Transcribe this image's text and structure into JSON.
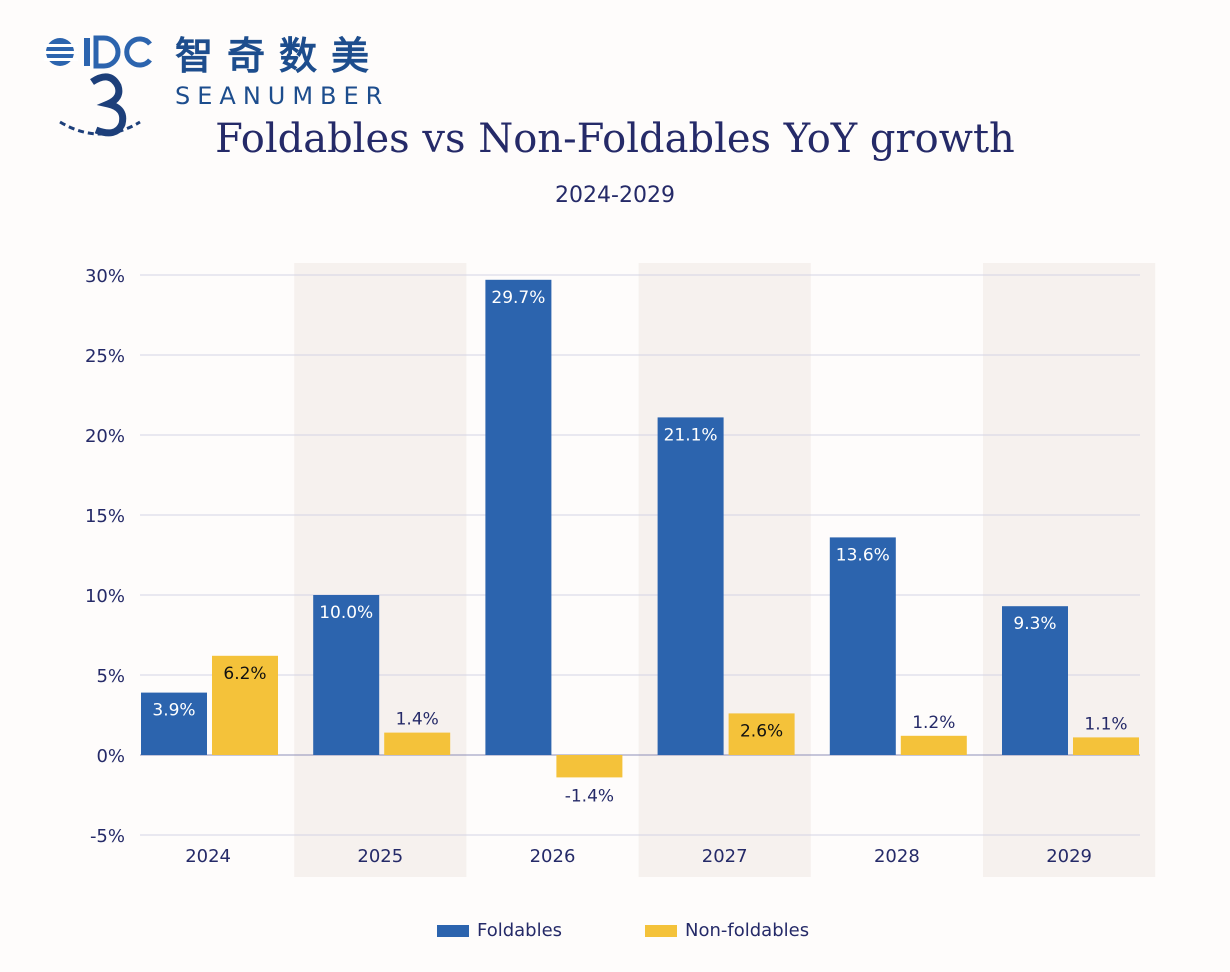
{
  "logo": {
    "brand_cn": "智奇数美",
    "brand_en": "SEANUMBER",
    "badge_text": "IDC SEA NUMBER"
  },
  "chart_data": {
    "type": "bar",
    "title": "Foldables vs Non-Foldables YoY growth",
    "subtitle": "2024-2029",
    "categories": [
      "2024",
      "2025",
      "2026",
      "2027",
      "2028",
      "2029"
    ],
    "series": [
      {
        "name": "Foldables",
        "color": "#2c64ae",
        "values": [
          3.9,
          10.0,
          29.7,
          21.1,
          13.6,
          9.3
        ],
        "labels": [
          "3.9%",
          "10.0%",
          "29.7%",
          "21.1%",
          "13.6%",
          "9.3%"
        ]
      },
      {
        "name": "Non-foldables",
        "color": "#f4c23a",
        "values": [
          6.2,
          1.4,
          -1.4,
          2.6,
          1.2,
          1.1
        ],
        "labels": [
          "6.2%",
          "1.4%",
          "-1.4%",
          "2.6%",
          "1.2%",
          "1.1%"
        ]
      }
    ],
    "yticks": [
      "-5%",
      "0%",
      "5%",
      "10%",
      "15%",
      "20%",
      "25%",
      "30%"
    ],
    "ytick_values": [
      -5,
      0,
      5,
      10,
      15,
      20,
      25,
      30
    ],
    "ylim": [
      -5,
      30
    ],
    "xlabel": "",
    "ylabel": "",
    "grid": true,
    "legend_position": "bottom"
  }
}
